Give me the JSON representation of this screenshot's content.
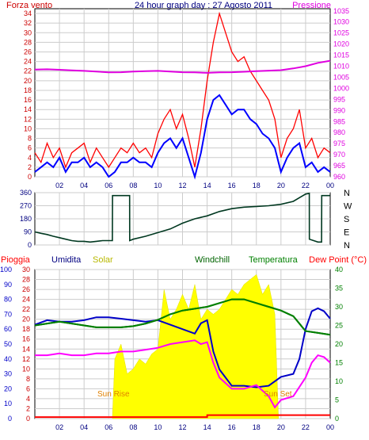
{
  "colors": {
    "wind": "#ff0000",
    "wind_avg": "#0000ff",
    "pressure": "#e000e0",
    "direction": "#003820",
    "humidity": "#0000c8",
    "solar": "#ffff00",
    "windchill": "#006400",
    "temperature": "#008000",
    "dewpoint": "#ff00ff",
    "rain": "#ff0000",
    "grid": "#cccccc"
  },
  "chart_data": [
    {
      "type": "line",
      "title": "24 hour graph day : 27 Agosto 2011",
      "left_label": "Forza vento",
      "right_label": "Pressione",
      "x_ticks": [
        "02",
        "04",
        "06",
        "08",
        "10",
        "12",
        "14",
        "16",
        "18",
        "20",
        "22",
        "00"
      ],
      "xlim": [
        0,
        24
      ],
      "left_ticks": [
        0,
        2,
        4,
        6,
        8,
        10,
        12,
        14,
        16,
        18,
        20,
        22,
        24,
        26,
        28,
        30,
        32,
        34
      ],
      "ylim_left": [
        0,
        35
      ],
      "right_ticks": [
        960,
        965,
        970,
        975,
        980,
        985,
        990,
        995,
        1000,
        1005,
        1010,
        1015,
        1020,
        1025,
        1030,
        1035
      ],
      "ylim_right": [
        960,
        1036
      ],
      "series": [
        {
          "key": "wind",
          "hours": [
            0,
            0.5,
            1,
            1.5,
            2,
            2.5,
            3,
            3.5,
            4,
            4.5,
            5,
            5.5,
            6,
            6.5,
            7,
            7.5,
            8,
            8.5,
            9,
            9.5,
            10,
            10.5,
            11,
            11.5,
            12,
            12.5,
            13,
            13.5,
            14,
            14.5,
            15,
            15.5,
            16,
            16.5,
            17,
            17.5,
            18,
            18.5,
            19,
            19.5,
            20,
            20.5,
            21,
            21.5,
            22,
            22.5,
            23,
            23.5,
            24
          ],
          "values": [
            5,
            3,
            7,
            4,
            6,
            2,
            5,
            6,
            7,
            3,
            6,
            4,
            2,
            4,
            6,
            5,
            7,
            5,
            6,
            4,
            9,
            12,
            14,
            10,
            13,
            8,
            2,
            10,
            20,
            28,
            34,
            30,
            26,
            24,
            25,
            22,
            20,
            18,
            16,
            12,
            4,
            8,
            10,
            14,
            6,
            8,
            4,
            6,
            5
          ]
        },
        {
          "key": "wind_avg",
          "hours": [
            0,
            0.5,
            1,
            1.5,
            2,
            2.5,
            3,
            3.5,
            4,
            4.5,
            5,
            5.5,
            6,
            6.5,
            7,
            7.5,
            8,
            8.5,
            9,
            9.5,
            10,
            10.5,
            11,
            11.5,
            12,
            12.5,
            13,
            13.5,
            14,
            14.5,
            15,
            15.5,
            16,
            16.5,
            17,
            17.5,
            18,
            18.5,
            19,
            19.5,
            20,
            20.5,
            21,
            21.5,
            22,
            22.5,
            23,
            23.5,
            24
          ],
          "values": [
            1,
            2,
            3,
            2,
            4,
            1,
            3,
            3,
            4,
            2,
            3,
            2,
            0,
            1,
            3,
            3,
            4,
            3,
            3,
            2,
            5,
            7,
            8,
            6,
            8,
            4,
            0,
            5,
            12,
            16,
            17,
            15,
            13,
            14,
            14,
            12,
            11,
            9,
            8,
            6,
            1,
            4,
            6,
            7,
            2,
            3,
            1,
            2,
            1
          ]
        },
        {
          "key": "pressure",
          "hours": [
            0,
            1,
            2,
            3,
            4,
            5,
            6,
            7,
            8,
            9,
            10,
            11,
            12,
            13,
            14,
            15,
            16,
            17,
            18,
            19,
            20,
            21,
            22,
            23,
            24
          ],
          "values": [
            1008.5,
            1008.6,
            1008.4,
            1008.1,
            1007.9,
            1007.6,
            1007.2,
            1007.3,
            1007.6,
            1007.8,
            1007.9,
            1007.6,
            1007.3,
            1007.2,
            1007,
            1007.2,
            1007.3,
            1007.5,
            1007.8,
            1008,
            1008.2,
            1009,
            1010,
            1011.5,
            1012.5
          ]
        }
      ]
    },
    {
      "type": "line",
      "right_label": [
        "N",
        "W",
        "S",
        "E",
        "N"
      ],
      "x_ticks": [],
      "xlim": [
        0,
        24
      ],
      "left_ticks": [
        0,
        90,
        180,
        270,
        360
      ],
      "ylim": [
        0,
        360
      ],
      "series": [
        {
          "key": "direction",
          "hours": [
            0,
            0.5,
            1,
            1.5,
            2,
            2.5,
            3,
            3.5,
            4,
            4.5,
            5,
            5.5,
            6,
            6.3,
            6.31,
            7.7,
            7.71,
            8,
            9,
            10,
            11,
            12,
            13,
            14,
            15,
            16,
            17,
            18,
            19,
            20,
            21,
            22,
            22.3,
            22.31,
            23,
            23.3,
            23.31,
            24
          ],
          "values": [
            90,
            80,
            72,
            60,
            50,
            40,
            30,
            25,
            25,
            20,
            25,
            30,
            30,
            30,
            340,
            340,
            30,
            40,
            60,
            85,
            110,
            150,
            180,
            200,
            230,
            250,
            260,
            265,
            270,
            280,
            300,
            350,
            355,
            40,
            20,
            20,
            340,
            340
          ]
        }
      ]
    },
    {
      "type": "area",
      "left_label_1": "Pioggia",
      "left_label_2": "Umidita",
      "solar_label": "Solar",
      "windchill_label": "Windchill",
      "temperature_label": "Temperatura",
      "dewpoint_label": "Dew Point (°C)",
      "sun_rise": "Sun Rise",
      "sun_set": "Sun Set",
      "x_ticks": [
        "02",
        "04",
        "06",
        "08",
        "10",
        "12",
        "14",
        "16",
        "18",
        "20",
        "22",
        "00"
      ],
      "xlim": [
        0,
        24
      ],
      "humidity_ticks": [
        0,
        10,
        20,
        30,
        40,
        50,
        60,
        70,
        80,
        90,
        100
      ],
      "rain_ticks": [
        0,
        2,
        4,
        6,
        8,
        10,
        12,
        14,
        16,
        18,
        20,
        22,
        24,
        26,
        28,
        30
      ],
      "temp_ticks": [
        0,
        5,
        10,
        15,
        20,
        25,
        30,
        35,
        40
      ],
      "ylim_humidity": [
        0,
        100
      ],
      "ylim_rain": [
        0,
        30
      ],
      "ylim_temp": [
        0,
        40
      ],
      "series": [
        {
          "key": "solar",
          "axis": "rain",
          "hours": [
            6.3,
            6.5,
            7,
            7.5,
            8,
            8.5,
            9,
            9.5,
            10,
            10.5,
            11,
            11.5,
            12,
            12.5,
            13,
            13.5,
            14,
            14.5,
            15,
            15.5,
            16,
            16.5,
            17,
            17.5,
            18,
            18.5,
            19,
            19.5,
            19.8
          ],
          "values": [
            0,
            12,
            15,
            9,
            10,
            12,
            11,
            13,
            14,
            26,
            20,
            22,
            25,
            22,
            27,
            20,
            22,
            21,
            22,
            24,
            26,
            25,
            27,
            28,
            29,
            25,
            27,
            21,
            0
          ]
        },
        {
          "key": "humidity",
          "axis": "humidity",
          "hours": [
            0,
            1,
            2,
            3,
            4,
            5,
            6,
            7,
            8,
            9,
            10,
            11,
            12,
            13,
            13.5,
            14,
            14.5,
            15,
            16,
            17,
            18,
            19,
            20,
            21,
            21.5,
            22,
            22.5,
            23,
            23.5,
            24
          ],
          "values": [
            63,
            66,
            65,
            65,
            66,
            68,
            68,
            67,
            66,
            65,
            66,
            63,
            60,
            57,
            64,
            66,
            45,
            33,
            22,
            22,
            21,
            22,
            28,
            30,
            40,
            60,
            72,
            74,
            72,
            67
          ]
        },
        {
          "key": "windchill",
          "axis": "temp",
          "hours": [
            0,
            1,
            2,
            3,
            4,
            5,
            6,
            7,
            8,
            9,
            10,
            11,
            12,
            13,
            14,
            15,
            16,
            17,
            18,
            19,
            20,
            21,
            22,
            23,
            24
          ],
          "values": [
            25,
            25.5,
            26,
            25.5,
            25,
            24.5,
            24.5,
            24.5,
            24.8,
            25.5,
            26.5,
            28,
            29,
            29.5,
            30,
            31,
            32,
            32,
            31,
            30,
            29,
            27.5,
            23.5,
            23,
            22.5
          ]
        },
        {
          "key": "temperature",
          "axis": "temp",
          "hours": [
            0,
            1,
            2,
            3,
            4,
            5,
            6,
            7,
            8,
            9,
            10,
            11,
            12,
            13,
            14,
            15,
            16,
            17,
            18,
            19,
            20,
            21,
            22,
            23,
            24
          ],
          "values": [
            25,
            25.5,
            26,
            25.5,
            25,
            24.5,
            24.5,
            24.5,
            24.8,
            25.5,
            26.5,
            28,
            29,
            29.5,
            30,
            31,
            32,
            32,
            31,
            30,
            29,
            27.5,
            23.5,
            23,
            22.5
          ]
        },
        {
          "key": "dewpoint",
          "axis": "temp",
          "hours": [
            0,
            1,
            2,
            3,
            4,
            5,
            6,
            7,
            8,
            9,
            10,
            11,
            12,
            13,
            13.5,
            14,
            14.5,
            15,
            16,
            17,
            18,
            19,
            19.5,
            20,
            21,
            22,
            22.5,
            23,
            23.5,
            24
          ],
          "values": [
            17,
            17,
            17.5,
            17,
            17,
            17.5,
            17.5,
            18,
            18,
            18.5,
            19,
            20,
            20.5,
            21,
            20,
            20.5,
            15,
            11,
            8,
            8,
            9,
            6,
            3,
            5,
            6,
            11,
            15,
            17,
            16.5,
            15
          ]
        },
        {
          "key": "rain",
          "axis": "rain",
          "hours": [
            0,
            14,
            14.01,
            24
          ],
          "values": [
            0.3,
            0.3,
            0.7,
            0.7
          ]
        }
      ]
    }
  ]
}
